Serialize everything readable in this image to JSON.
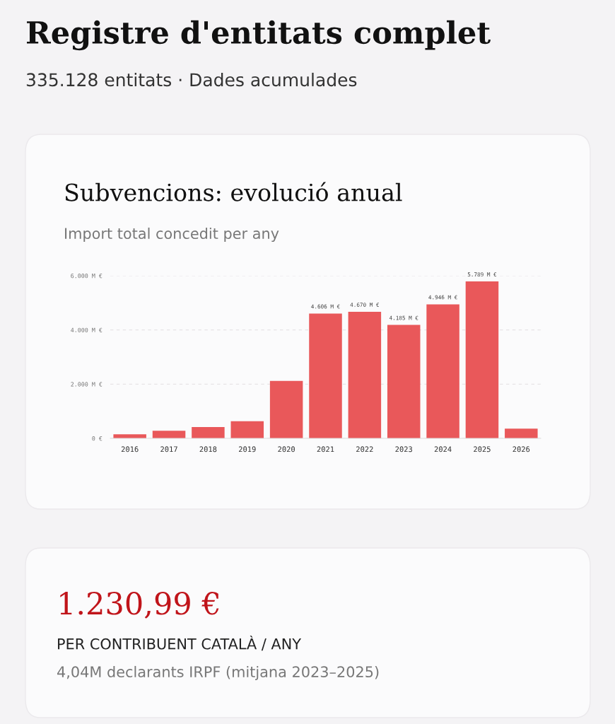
{
  "chart_data": {
    "type": "bar",
    "title": "Subvencions: evolució anual",
    "subtitle": "Import total concedit per any",
    "categories": [
      "2016",
      "2017",
      "2018",
      "2019",
      "2020",
      "2021",
      "2022",
      "2023",
      "2024",
      "2025",
      "2026"
    ],
    "values": [
      150,
      280,
      420,
      630,
      2120,
      4606,
      4670,
      4185,
      4946,
      5789,
      360
    ],
    "value_labels": [
      null,
      null,
      null,
      null,
      null,
      "4.606 M €",
      "4.670 M €",
      "4.185 M €",
      "4.946 M €",
      "5.789 M €",
      null
    ],
    "color": "#e9585a",
    "ylim": [
      0,
      6000
    ],
    "yticks": [
      {
        "value": 0,
        "label": "0 €"
      },
      {
        "value": 2000,
        "label": "2.000 M €"
      },
      {
        "value": 4000,
        "label": "4.000 M €"
      },
      {
        "value": 6000,
        "label": "6.000 M €"
      }
    ],
    "grid": "y",
    "annotations": [
      "Registre d'entitats complet",
      "335.128 entitats · Dades acumulades",
      "1.230,99 €",
      "PER CONTRIBUENT CATALÀ / ANY",
      "4,04M declarants IRPF (mitjana 2023–2025)"
    ]
  }
}
